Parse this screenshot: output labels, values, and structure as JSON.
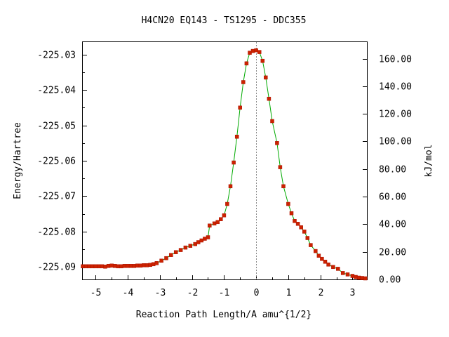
{
  "chart_data": {
    "type": "line",
    "title": "H4CN20   EQ143 - TS1295 - DDC355",
    "xlabel": "Reaction Path Length/A amu^{1/2}",
    "ylabel": "Energy/Hartree",
    "y2label": "kJ/mol",
    "xlim": [
      -5.4,
      3.45
    ],
    "ylim": [
      -225.0935,
      -225.0265
    ],
    "y2lim": [
      0,
      172.0
    ],
    "x_ticks": [
      {
        "v": -5,
        "label": "-5"
      },
      {
        "v": -4,
        "label": "-4"
      },
      {
        "v": -3,
        "label": "-3"
      },
      {
        "v": -2,
        "label": "-2"
      },
      {
        "v": -1,
        "label": "-1"
      },
      {
        "v": 0,
        "label": "0"
      },
      {
        "v": 1,
        "label": "1"
      },
      {
        "v": 2,
        "label": "2"
      },
      {
        "v": 3,
        "label": "3"
      }
    ],
    "y_ticks": [
      {
        "v": -225.03,
        "label": "-225.03"
      },
      {
        "v": -225.04,
        "label": "-225.04"
      },
      {
        "v": -225.05,
        "label": "-225.05"
      },
      {
        "v": -225.06,
        "label": "-225.06"
      },
      {
        "v": -225.07,
        "label": "-225.07"
      },
      {
        "v": -225.08,
        "label": "-225.08"
      },
      {
        "v": -225.09,
        "label": "-225.09"
      }
    ],
    "y2_ticks": [
      {
        "v": 0,
        "label": "0.00"
      },
      {
        "v": 20,
        "label": "20.00"
      },
      {
        "v": 40,
        "label": "40.00"
      },
      {
        "v": 60,
        "label": "60.00"
      },
      {
        "v": 80,
        "label": "80.00"
      },
      {
        "v": 100,
        "label": "100.00"
      },
      {
        "v": 120,
        "label": "120.00"
      },
      {
        "v": 140,
        "label": "140.00"
      },
      {
        "v": 160,
        "label": "160.00"
      }
    ],
    "ts_marker_x": 0,
    "line_color": "#00aa00",
    "point_color": "#cc2200",
    "ts_line_color": "#888888",
    "series": [
      {
        "points": [
          [
            -5.4,
            -225.0898
          ],
          [
            -5.3,
            -225.0898
          ],
          [
            -5.2,
            -225.0898
          ],
          [
            -5.1,
            -225.0898
          ],
          [
            -5.0,
            -225.0898
          ],
          [
            -4.9,
            -225.0898
          ],
          [
            -4.8,
            -225.0898
          ],
          [
            -4.7,
            -225.0899
          ],
          [
            -4.6,
            -225.0897
          ],
          [
            -4.5,
            -225.0896
          ],
          [
            -4.4,
            -225.0897
          ],
          [
            -4.3,
            -225.0898
          ],
          [
            -4.2,
            -225.0898
          ],
          [
            -4.1,
            -225.0897
          ],
          [
            -4.0,
            -225.0897
          ],
          [
            -3.9,
            -225.0897
          ],
          [
            -3.8,
            -225.0897
          ],
          [
            -3.7,
            -225.0896
          ],
          [
            -3.6,
            -225.0896
          ],
          [
            -3.5,
            -225.0895
          ],
          [
            -3.4,
            -225.0895
          ],
          [
            -3.3,
            -225.0894
          ],
          [
            -3.2,
            -225.0892
          ],
          [
            -3.1,
            -225.0889
          ],
          [
            -2.95,
            -225.0882
          ],
          [
            -2.8,
            -225.0875
          ],
          [
            -2.65,
            -225.0866
          ],
          [
            -2.5,
            -225.0858
          ],
          [
            -2.35,
            -225.0852
          ],
          [
            -2.2,
            -225.0845
          ],
          [
            -2.05,
            -225.084
          ],
          [
            -1.9,
            -225.0835
          ],
          [
            -1.8,
            -225.083
          ],
          [
            -1.7,
            -225.0825
          ],
          [
            -1.6,
            -225.082
          ],
          [
            -1.5,
            -225.0816
          ],
          [
            -1.45,
            -225.0783
          ],
          [
            -1.3,
            -225.0777
          ],
          [
            -1.2,
            -225.0773
          ],
          [
            -1.1,
            -225.0765
          ],
          [
            -1.0,
            -225.0754
          ],
          [
            -0.9,
            -225.0722
          ],
          [
            -0.8,
            -225.0672
          ],
          [
            -0.7,
            -225.0605
          ],
          [
            -0.6,
            -225.0532
          ],
          [
            -0.5,
            -225.045
          ],
          [
            -0.4,
            -225.0378
          ],
          [
            -0.3,
            -225.0325
          ],
          [
            -0.2,
            -225.0295
          ],
          [
            -0.1,
            -225.029
          ],
          [
            0.0,
            -225.0288
          ],
          [
            0.1,
            -225.0293
          ],
          [
            0.2,
            -225.0318
          ],
          [
            0.3,
            -225.0365
          ],
          [
            0.4,
            -225.0425
          ],
          [
            0.5,
            -225.0488
          ],
          [
            0.65,
            -225.055
          ],
          [
            0.75,
            -225.0618
          ],
          [
            0.85,
            -225.0672
          ],
          [
            1.0,
            -225.0722
          ],
          [
            1.1,
            -225.0748
          ],
          [
            1.2,
            -225.077
          ],
          [
            1.3,
            -225.0778
          ],
          [
            1.4,
            -225.0788
          ],
          [
            1.5,
            -225.08
          ],
          [
            1.6,
            -225.0818
          ],
          [
            1.7,
            -225.0838
          ],
          [
            1.85,
            -225.0855
          ],
          [
            1.95,
            -225.0868
          ],
          [
            2.05,
            -225.0877
          ],
          [
            2.15,
            -225.0885
          ],
          [
            2.25,
            -225.0893
          ],
          [
            2.4,
            -225.09
          ],
          [
            2.55,
            -225.0905
          ],
          [
            2.7,
            -225.0917
          ],
          [
            2.85,
            -225.0921
          ],
          [
            3.0,
            -225.0925
          ],
          [
            3.1,
            -225.0928
          ],
          [
            3.2,
            -225.093
          ],
          [
            3.3,
            -225.0931
          ],
          [
            3.4,
            -225.0932
          ]
        ]
      }
    ]
  }
}
